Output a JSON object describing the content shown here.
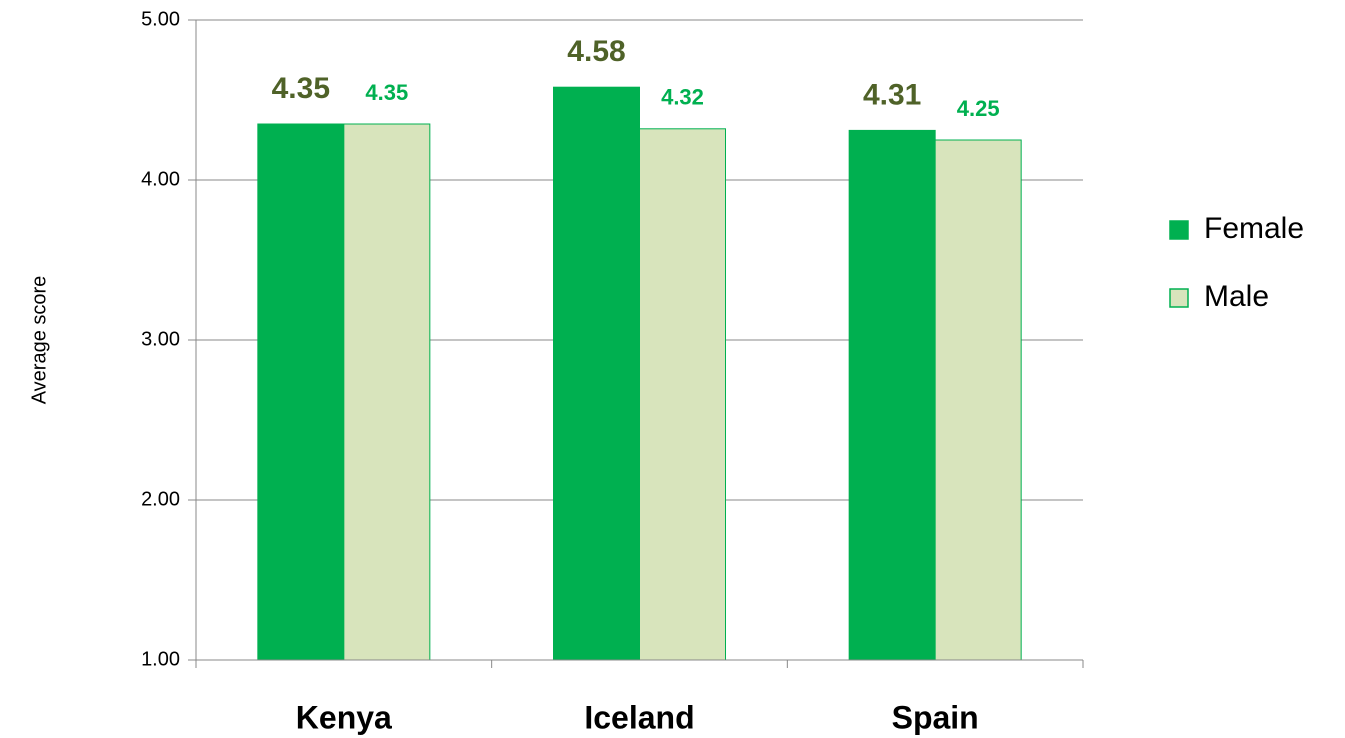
{
  "chart_data": {
    "type": "bar",
    "y_axis_label": "Average score",
    "categories": [
      "Kenya",
      "Iceland",
      "Spain"
    ],
    "series": [
      {
        "name": "Female",
        "color": "#00b050",
        "label_color": "#4f6228",
        "values": [
          4.35,
          4.58,
          4.31
        ]
      },
      {
        "name": "Male",
        "color": "#d8e4bc",
        "edge_color": "#00b050",
        "label_color": "#00b050",
        "values": [
          4.35,
          4.32,
          4.25
        ]
      }
    ],
    "ylim": [
      1,
      5
    ],
    "yticks": [
      {
        "value": 1,
        "label": "1.00"
      },
      {
        "value": 2,
        "label": "2.00"
      },
      {
        "value": 3,
        "label": "3.00"
      },
      {
        "value": 4,
        "label": "4.00"
      },
      {
        "value": 5,
        "label": "5.00"
      }
    ],
    "grid": true,
    "legend": "right"
  }
}
